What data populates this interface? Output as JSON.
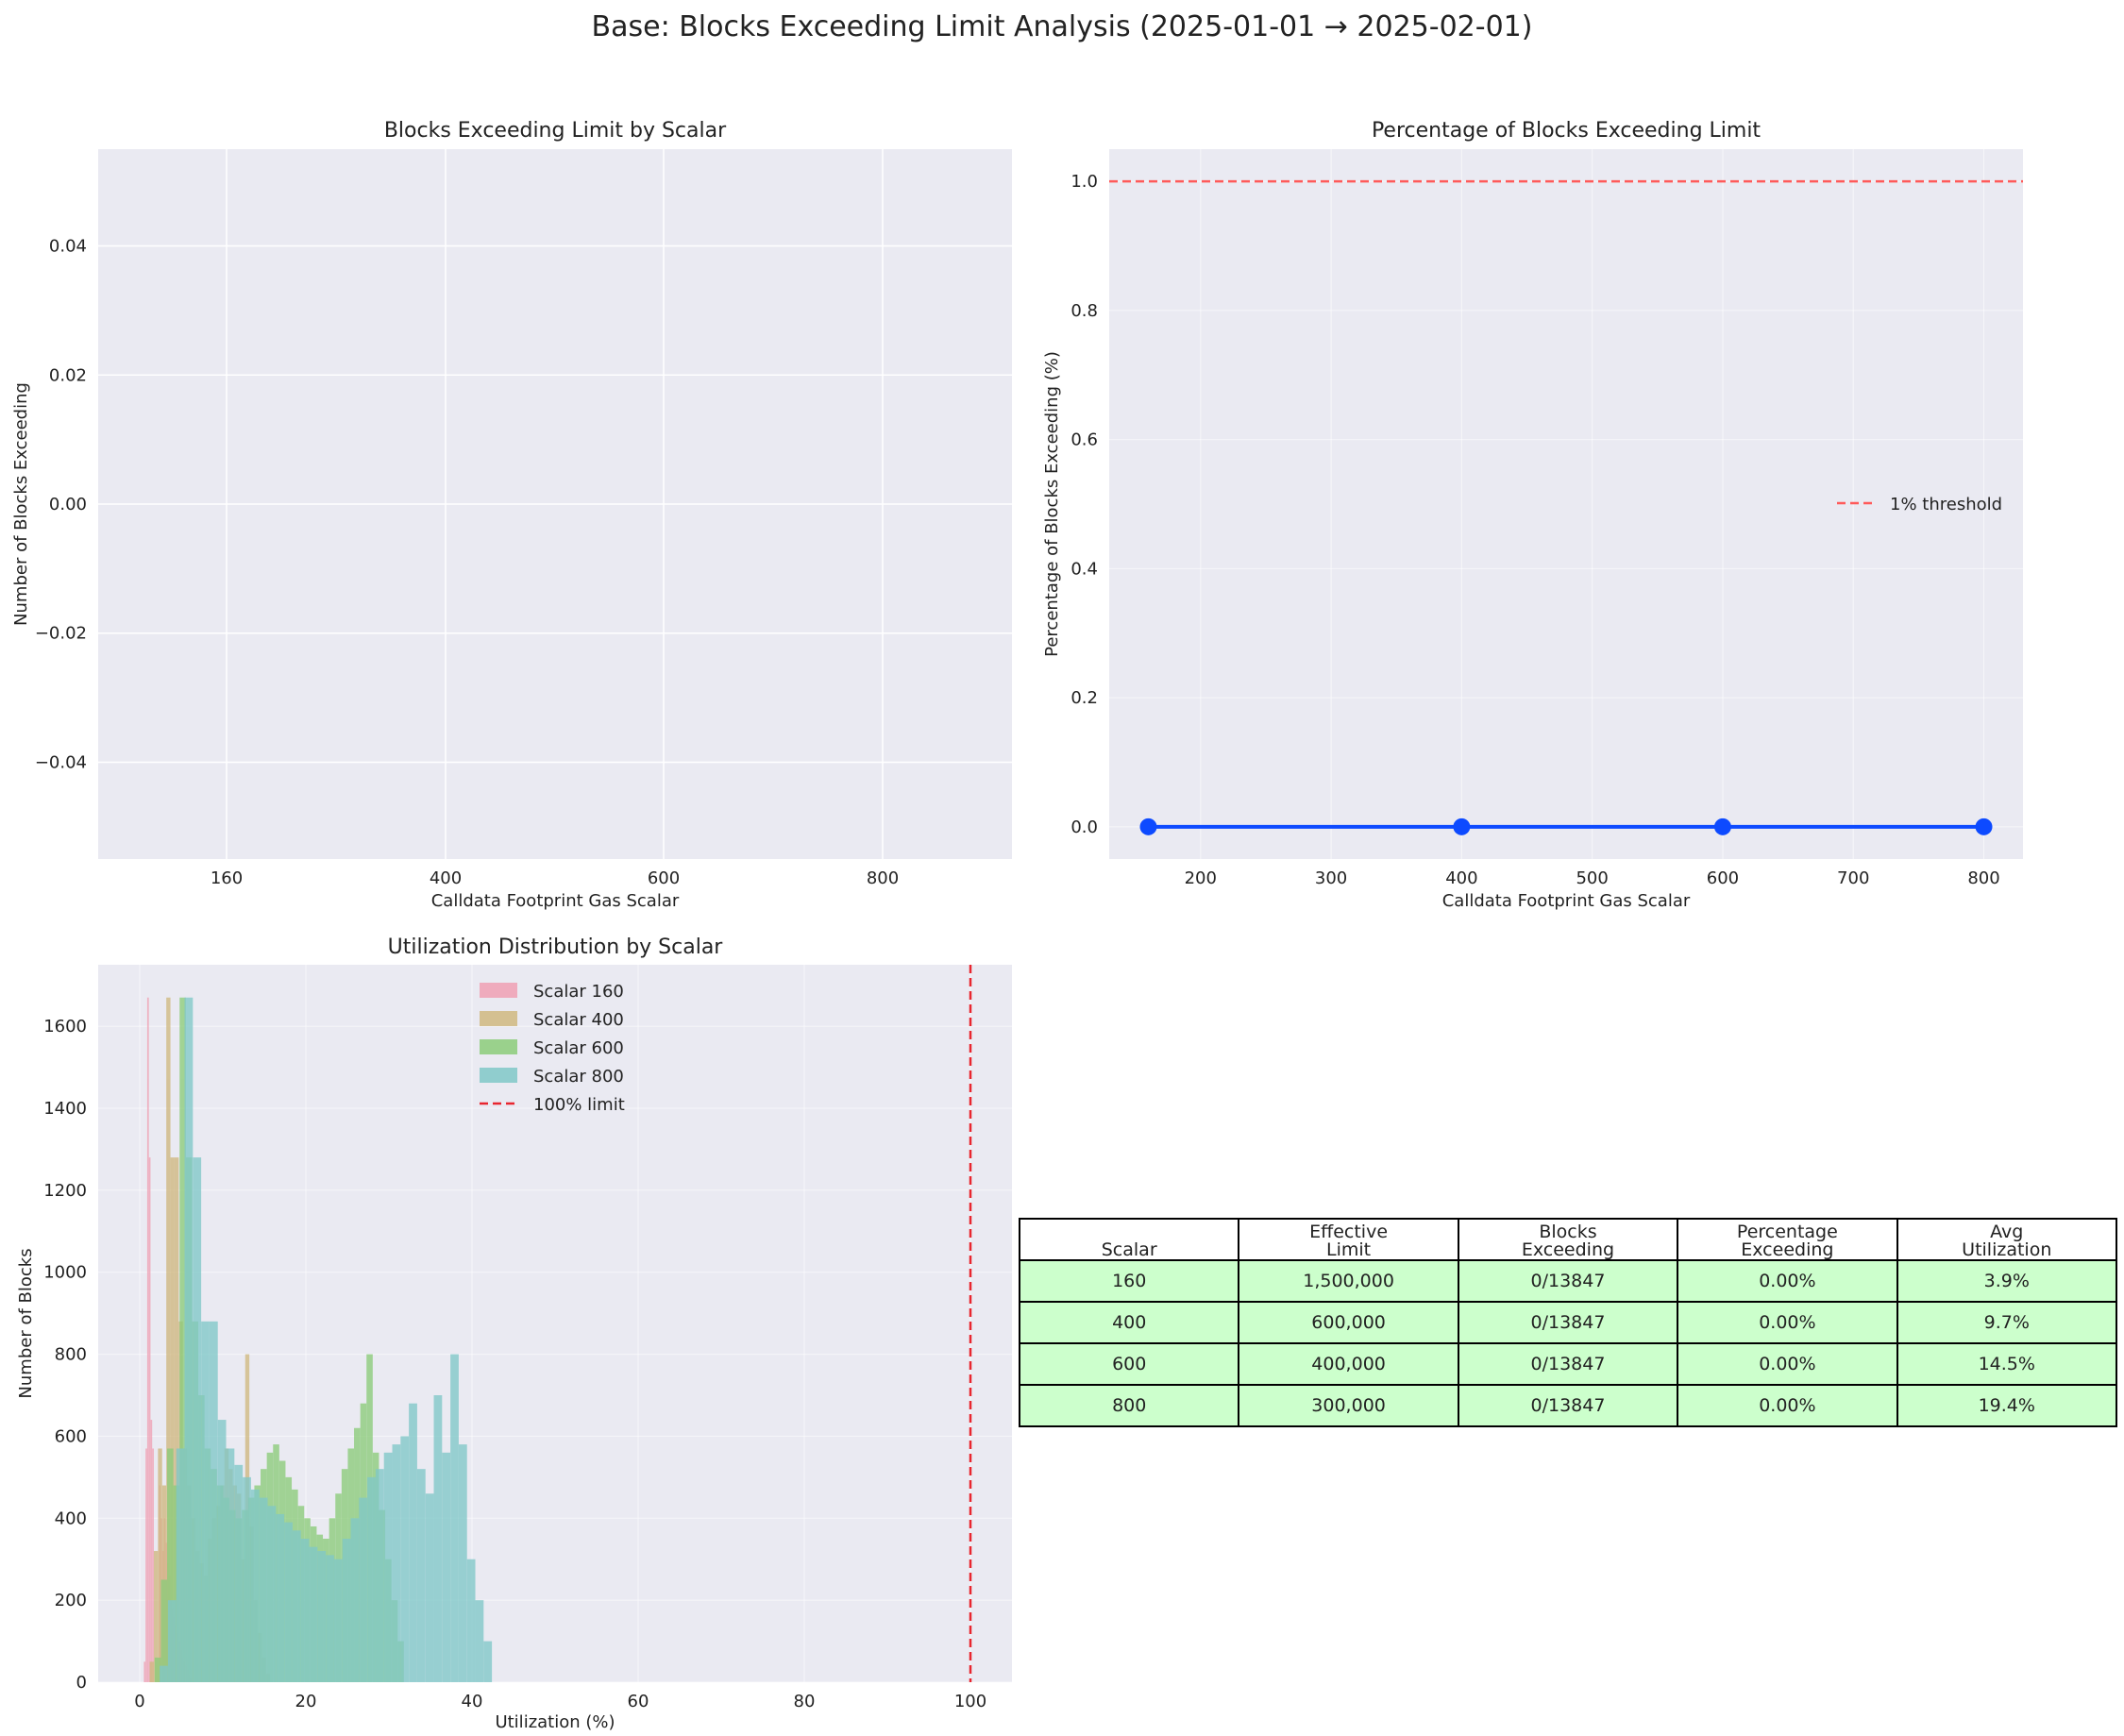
{
  "figure": {
    "suptitle": "Base: Blocks Exceeding Limit Analysis (2025-01-01 → 2025-02-01)"
  },
  "chart_data": [
    {
      "id": "exceed-count",
      "type": "bar",
      "title": "Blocks Exceeding Limit by Scalar",
      "xlabel": "Calldata Footprint Gas Scalar",
      "ylabel": "Number of Blocks Exceeding",
      "categories": [
        "160",
        "400",
        "600",
        "800"
      ],
      "values": [
        0,
        0,
        0,
        0
      ],
      "ylim": [
        -0.055,
        0.055
      ],
      "yticks": [
        "0.04",
        "0.02",
        "0.00",
        "−0.02",
        "−0.04"
      ],
      "ytick_values": [
        0.04,
        0.02,
        0.0,
        -0.02,
        -0.04
      ],
      "grid": true
    },
    {
      "id": "exceed-percent",
      "type": "line",
      "title": "Percentage of Blocks Exceeding Limit",
      "xlabel": "Calldata Footprint Gas Scalar",
      "ylabel": "Percentage of Blocks Exceeding (%)",
      "series": [
        {
          "x": [
            160,
            400,
            600,
            800
          ],
          "y": [
            0,
            0,
            0,
            0
          ],
          "color": "#0d4aff"
        }
      ],
      "threshold": {
        "name": "1% threshold",
        "y": 1.0,
        "color": "#ff5a5a"
      },
      "xlim": [
        130,
        830
      ],
      "ylim": [
        -0.05,
        1.05
      ],
      "xticks": [
        "200",
        "300",
        "400",
        "500",
        "600",
        "700",
        "800"
      ],
      "xtick_values": [
        200,
        300,
        400,
        500,
        600,
        700,
        800
      ],
      "yticks": [
        "0.0",
        "0.2",
        "0.4",
        "0.6",
        "0.8",
        "1.0"
      ],
      "ytick_values": [
        0.0,
        0.2,
        0.4,
        0.6,
        0.8,
        1.0
      ],
      "legend": "center-right",
      "grid": true
    },
    {
      "id": "utilization-hist",
      "type": "histogram",
      "title": "Utilization Distribution by Scalar",
      "xlabel": "Utilization (%)",
      "ylabel": "Number of Blocks",
      "xlim": [
        -5,
        105
      ],
      "ylim": [
        0,
        1750
      ],
      "xticks": [
        "0",
        "20",
        "40",
        "60",
        "80",
        "100"
      ],
      "xtick_values": [
        0,
        20,
        40,
        60,
        80,
        100
      ],
      "yticks": [
        "0",
        "200",
        "400",
        "600",
        "800",
        "1000",
        "1200",
        "1400",
        "1600"
      ],
      "ytick_values": [
        0,
        200,
        400,
        600,
        800,
        1000,
        1200,
        1400,
        1600
      ],
      "limit_line": {
        "name": "100% limit",
        "x": 100,
        "color": "#e8262f"
      },
      "legend": "upper-center",
      "grid": true,
      "series": [
        {
          "name": "Scalar 160",
          "color": "#f0a0b4",
          "bin_start": 0.5,
          "bin_width": 0.2,
          "counts": [
            50,
            570,
            1670,
            1280,
            640,
            570,
            0,
            0,
            0,
            480,
            400,
            320,
            400,
            340,
            290,
            260,
            200,
            180,
            160,
            140,
            120,
            100,
            80,
            60,
            50,
            40,
            30,
            20,
            10
          ]
        },
        {
          "name": "Scalar 400",
          "color": "#d0b880",
          "bin_start": 1.2,
          "bin_width": 0.5,
          "counts": [
            50,
            320,
            570,
            480,
            1670,
            1280,
            1280,
            880,
            570,
            480,
            400,
            320,
            290,
            260,
            350,
            400,
            430,
            480,
            570,
            520,
            480,
            460,
            300,
            800,
            380,
            200,
            120,
            60,
            20
          ]
        },
        {
          "name": "Scalar 600",
          "color": "#8ccc7a",
          "bin_start": 1.8,
          "bin_width": 0.75,
          "counts": [
            60,
            250,
            570,
            480,
            1670,
            1280,
            880,
            700,
            570,
            520,
            480,
            450,
            420,
            400,
            420,
            450,
            480,
            520,
            560,
            580,
            540,
            500,
            470,
            430,
            400,
            380,
            360,
            350,
            400,
            460,
            520,
            570,
            620,
            680,
            800,
            560,
            420,
            300,
            200,
            100
          ]
        },
        {
          "name": "Scalar 800",
          "color": "#80c8c8",
          "bin_start": 2.4,
          "bin_width": 1.0,
          "counts": [
            40,
            200,
            570,
            1670,
            1280,
            880,
            880,
            640,
            570,
            530,
            500,
            470,
            450,
            430,
            410,
            390,
            370,
            350,
            330,
            320,
            310,
            300,
            350,
            400,
            450,
            500,
            520,
            560,
            580,
            600,
            680,
            520,
            460,
            700,
            560,
            800,
            580,
            300,
            200,
            100
          ]
        }
      ]
    }
  ],
  "table": {
    "headers": [
      "Scalar",
      "Effective\nLimit",
      "Blocks\nExceeding",
      "Percentage\nExceeding",
      "Avg\nUtilization"
    ],
    "rows": [
      [
        "160",
        "1,500,000",
        "0/13847",
        "0.00%",
        "3.9%"
      ],
      [
        "400",
        "600,000",
        "0/13847",
        "0.00%",
        "9.7%"
      ],
      [
        "600",
        "400,000",
        "0/13847",
        "0.00%",
        "14.5%"
      ],
      [
        "800",
        "300,000",
        "0/13847",
        "0.00%",
        "19.4%"
      ]
    ],
    "row_color": "#ccffcc"
  }
}
